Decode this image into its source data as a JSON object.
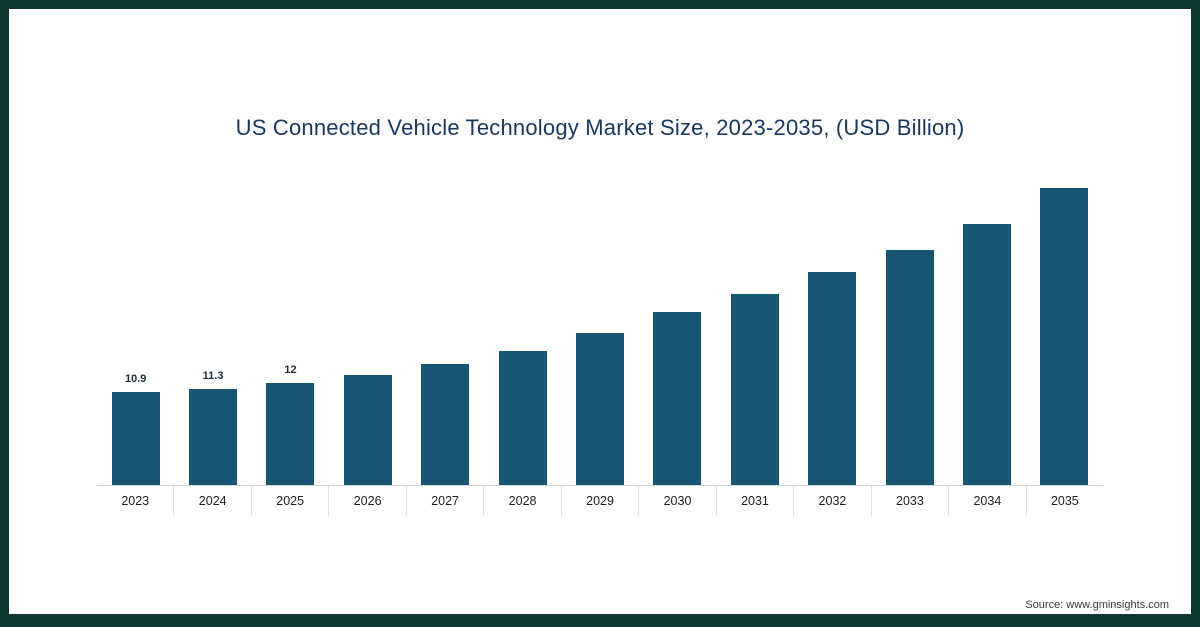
{
  "title": "US Connected Vehicle Technology Market Size, 2023-2035, (USD Billion)",
  "source": "Source: www.gminsights.com",
  "colors": {
    "bar": "#175673",
    "frame": "#0d3733",
    "title_text": "#17375e",
    "data_label_text": "#1b2a3a"
  },
  "chart_data": {
    "type": "bar",
    "title": "US Connected Vehicle Technology Market Size, 2023-2035, (USD Billion)",
    "categories": [
      "2023",
      "2024",
      "2025",
      "2026",
      "2027",
      "2028",
      "2029",
      "2030",
      "2031",
      "2032",
      "2033",
      "2034",
      "2035"
    ],
    "values": [
      10.9,
      11.3,
      12,
      12.9,
      14.2,
      15.8,
      17.9,
      20.3,
      22.5,
      25.1,
      27.6,
      30.7,
      34.9
    ],
    "data_labels": [
      "10.9",
      "11.3",
      "12",
      "",
      "",
      "",
      "",
      "",
      "",
      "",
      "",
      "",
      ""
    ],
    "xlabel": "",
    "ylabel": "",
    "ylim": [
      0,
      36
    ],
    "grid": false,
    "legend": false,
    "bar_color": "#175673"
  }
}
